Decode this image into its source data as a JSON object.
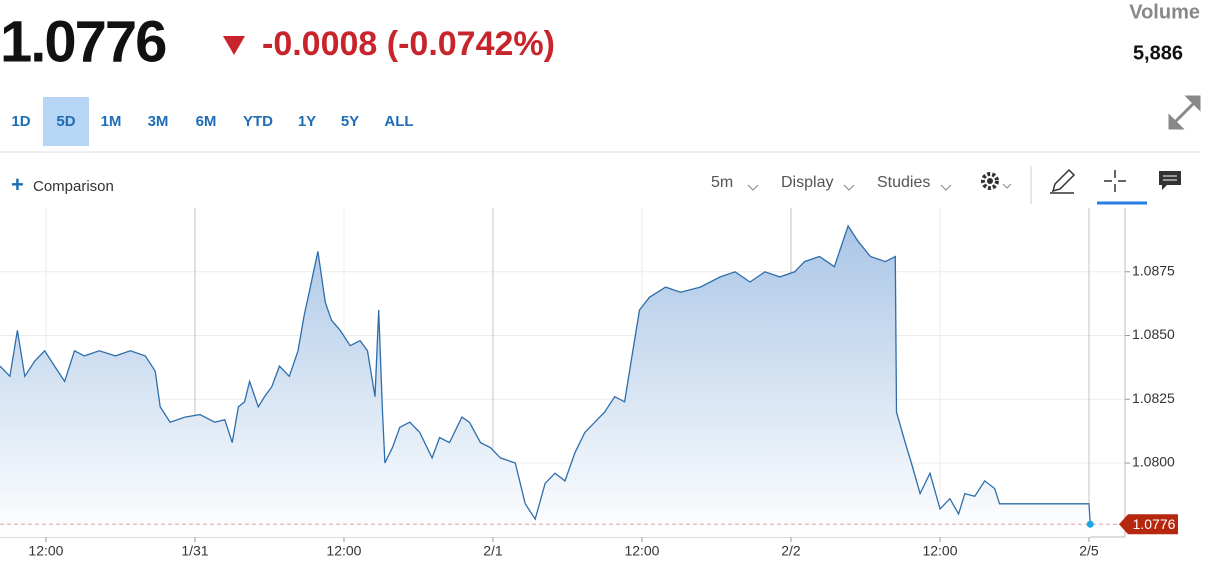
{
  "header": {
    "price": "1.0776",
    "change": "-0.0008 (-0.0742%)",
    "volume_label": "Volume",
    "volume": "5,886",
    "ranges": [
      "1D",
      "5D",
      "1M",
      "3M",
      "6M",
      "YTD",
      "1Y",
      "5Y",
      "ALL"
    ],
    "selected_range": 1
  },
  "toolbar": {
    "comparison": "Comparison",
    "interval": "5m",
    "display": "Display",
    "studies": "Studies"
  },
  "chart_data": {
    "type": "area",
    "color": "#2e6eab",
    "grid": true,
    "x": [
      -15.7,
      -14.9,
      -14.3,
      -13.7,
      -12.9,
      -12.1,
      -11.3,
      -10.5,
      -9.7,
      -8.9,
      -7.7,
      -6.4,
      -5.2,
      -4.0,
      -3.2,
      -2.8,
      -2.0,
      -0.8,
      0.4,
      1.6,
      2.4,
      3.0,
      3.5,
      4.0,
      4.4,
      5.1,
      5.6,
      6.2,
      6.8,
      7.6,
      8.3,
      8.8,
      9.2,
      9.9,
      10.5,
      11.0,
      11.7,
      12.5,
      13.3,
      13.9,
      14.5,
      14.8,
      15.1,
      15.3,
      15.9,
      16.5,
      17.3,
      18.1,
      19.1,
      19.7,
      20.5,
      21.5,
      22.1,
      23.0,
      23.8,
      24.6,
      25.8,
      26.6,
      27.4,
      28.2,
      29.0,
      29.8,
      30.6,
      31.4,
      32.2,
      33.0,
      33.8,
      34.6,
      35.2,
      35.8,
      36.6,
      37.9,
      39.1,
      40.7,
      42.3,
      43.5,
      44.7,
      45.9,
      47.1,
      48.3,
      49.1,
      50.3,
      51.5,
      52.6,
      53.4,
      54.4,
      55.6,
      56.4,
      56.5,
      57.2,
      57.7,
      58.4,
      59.2,
      60.0,
      60.8,
      61.5,
      62.0,
      62.8,
      63.6,
      64.4,
      64.8,
      72.0,
      72.1
    ],
    "values": [
      1.0838,
      1.0834,
      1.0852,
      1.0834,
      1.084,
      1.0844,
      1.0838,
      1.0832,
      1.0844,
      1.0842,
      1.0844,
      1.0842,
      1.0844,
      1.0842,
      1.0836,
      1.0822,
      1.0816,
      1.0818,
      1.0819,
      1.0816,
      1.0817,
      1.0808,
      1.0822,
      1.0824,
      1.0832,
      1.0822,
      1.0826,
      1.083,
      1.0838,
      1.0834,
      1.0844,
      1.0858,
      1.0867,
      1.0883,
      1.0863,
      1.0856,
      1.0852,
      1.0846,
      1.0848,
      1.0844,
      1.0826,
      1.086,
      1.082,
      1.08,
      1.0806,
      1.0814,
      1.0816,
      1.0812,
      1.0802,
      1.081,
      1.0808,
      1.0818,
      1.0816,
      1.0808,
      1.0806,
      1.0802,
      1.08,
      1.0784,
      1.0778,
      1.0792,
      1.0796,
      1.0793,
      1.0804,
      1.0812,
      1.0816,
      1.082,
      1.0826,
      1.0824,
      1.0842,
      1.086,
      1.0865,
      1.0869,
      1.0867,
      1.0869,
      1.0873,
      1.0875,
      1.0871,
      1.0875,
      1.0873,
      1.0875,
      1.0879,
      1.0881,
      1.0877,
      1.0893,
      1.0887,
      1.0881,
      1.0879,
      1.0881,
      1.082,
      1.0808,
      1.08,
      1.0788,
      1.0796,
      1.0782,
      1.0786,
      1.078,
      1.0788,
      1.0787,
      1.0793,
      1.079,
      1.0784,
      1.0784,
      1.0776
    ],
    "xlim": [
      -15.7,
      74.9
    ],
    "xticks": [
      {
        "value": -12,
        "label": "12:00"
      },
      {
        "value": 0,
        "label": "1/31"
      },
      {
        "value": 12,
        "label": "12:00"
      },
      {
        "value": 24,
        "label": "2/1"
      },
      {
        "value": 36,
        "label": "12:00"
      },
      {
        "value": 48,
        "label": "2/2"
      },
      {
        "value": 60,
        "label": "12:00"
      },
      {
        "value": 72,
        "label": "2/5"
      }
    ],
    "ylim": [
      1.0771,
      1.09
    ],
    "yticks": [
      {
        "value": 1.08,
        "label": "1.0800"
      },
      1.0825,
      {
        "value": 1.085,
        "label": "1.0850"
      },
      1.0875
    ]
  }
}
